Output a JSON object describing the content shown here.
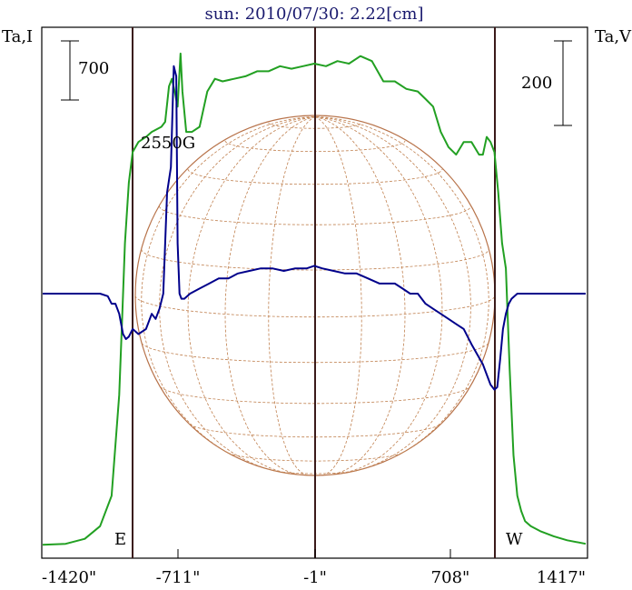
{
  "chart_data": {
    "type": "line",
    "title": "sun: 2010/07/30: 2.22[cm]",
    "left_axis_label": "Ta,I",
    "right_axis_label": "Ta,V",
    "left_scale_label": "700",
    "right_scale_label": "200",
    "x_tick_labels": [
      "-1420\"",
      "-711\"",
      "-1\"",
      "708\"",
      "1417\""
    ],
    "xlim": [
      -1420,
      1417
    ],
    "limb_markers": [
      {
        "label": "E",
        "x": -1000
      },
      {
        "label": "W",
        "x": 1000
      }
    ],
    "center_marker": -1,
    "annotations": [
      {
        "text": "2550G",
        "near_x": -711
      }
    ],
    "series": [
      {
        "name": "",
        "color": "#22a022",
        "y_units": "relative",
        "ylim": [
          0,
          1
        ],
        "x": [
          -1420,
          -1300,
          -1200,
          -1120,
          -1060,
          -1020,
          -1005,
          -990,
          -970,
          -950,
          -920,
          -880,
          -850,
          -800,
          -780,
          -760,
          -745,
          -730,
          -715,
          -700,
          -690,
          -670,
          -640,
          -600,
          -560,
          -520,
          -480,
          -420,
          -360,
          -300,
          -240,
          -180,
          -120,
          -60,
          -1,
          60,
          120,
          180,
          240,
          300,
          360,
          420,
          480,
          540,
          580,
          620,
          660,
          700,
          740,
          780,
          820,
          860,
          880,
          900,
          920,
          940,
          960,
          980,
          1000,
          1020,
          1040,
          1060,
          1080,
          1100,
          1130,
          1180,
          1250,
          1320,
          1417
        ],
        "y": [
          0.003,
          0.005,
          0.015,
          0.04,
          0.1,
          0.3,
          0.45,
          0.6,
          0.72,
          0.78,
          0.8,
          0.81,
          0.82,
          0.83,
          0.84,
          0.91,
          0.925,
          0.9,
          0.87,
          0.975,
          0.9,
          0.82,
          0.82,
          0.83,
          0.9,
          0.925,
          0.92,
          0.925,
          0.93,
          0.94,
          0.94,
          0.95,
          0.945,
          0.95,
          0.955,
          0.95,
          0.96,
          0.955,
          0.97,
          0.96,
          0.92,
          0.92,
          0.905,
          0.9,
          0.885,
          0.87,
          0.82,
          0.79,
          0.775,
          0.8,
          0.8,
          0.775,
          0.775,
          0.81,
          0.8,
          0.78,
          0.7,
          0.6,
          0.55,
          0.35,
          0.18,
          0.1,
          0.07,
          0.05,
          0.04,
          0.03,
          0.02,
          0.012,
          0.005
        ]
      },
      {
        "name": "",
        "color": "#00008b",
        "y_units": "relative",
        "ylim": [
          0,
          1
        ],
        "x": [
          -1420,
          -1300,
          -1200,
          -1120,
          -1080,
          -1060,
          -1040,
          -1020,
          -1000,
          -985,
          -970,
          -950,
          -920,
          -880,
          -850,
          -830,
          -810,
          -790,
          -770,
          -750,
          -735,
          -722,
          -715,
          -705,
          -695,
          -680,
          -650,
          -600,
          -550,
          -500,
          -450,
          -400,
          -340,
          -280,
          -220,
          -160,
          -100,
          -40,
          -1,
          40,
          100,
          160,
          220,
          280,
          340,
          380,
          420,
          460,
          500,
          540,
          580,
          620,
          660,
          700,
          740,
          780,
          820,
          850,
          880,
          900,
          920,
          940,
          955,
          970,
          985,
          1000,
          1015,
          1030,
          1060,
          1100,
          1150,
          1250,
          1417
        ],
        "y": [
          0.5,
          0.5,
          0.5,
          0.5,
          0.495,
          0.48,
          0.48,
          0.46,
          0.42,
          0.41,
          0.415,
          0.43,
          0.42,
          0.43,
          0.46,
          0.45,
          0.47,
          0.5,
          0.7,
          0.75,
          0.95,
          0.93,
          0.6,
          0.5,
          0.49,
          0.49,
          0.5,
          0.51,
          0.52,
          0.53,
          0.53,
          0.54,
          0.545,
          0.55,
          0.55,
          0.545,
          0.55,
          0.55,
          0.555,
          0.55,
          0.545,
          0.54,
          0.54,
          0.53,
          0.52,
          0.52,
          0.52,
          0.51,
          0.5,
          0.5,
          0.48,
          0.47,
          0.46,
          0.45,
          0.44,
          0.43,
          0.4,
          0.38,
          0.36,
          0.34,
          0.32,
          0.31,
          0.315,
          0.37,
          0.43,
          0.46,
          0.48,
          0.49,
          0.5,
          0.5,
          0.5,
          0.5,
          0.5
        ]
      }
    ]
  }
}
